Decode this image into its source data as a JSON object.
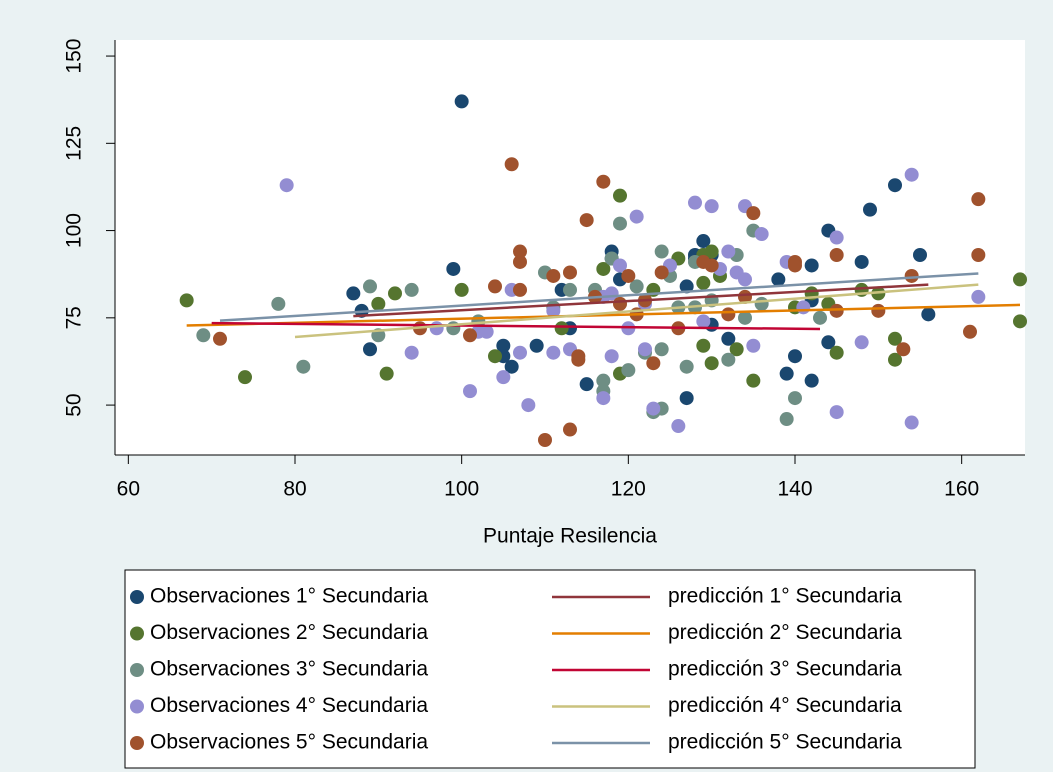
{
  "chart_data": {
    "type": "scatter",
    "xlabel": "Puntaje Resilencia",
    "xlim": [
      58.4,
      167.6
    ],
    "ylim": [
      35.7,
      154.6
    ],
    "xticks": [
      60,
      80,
      100,
      120,
      140,
      160
    ],
    "yticks": [
      50,
      75,
      100,
      125,
      150
    ],
    "grid": false,
    "legend": "bottom",
    "series": [
      {
        "name": "Observaciones 1° Secundaria",
        "type": "scatter",
        "color": "#1a476f",
        "x": [
          100,
          87,
          88,
          89,
          99,
          105,
          105,
          106,
          109,
          112,
          113,
          115,
          118,
          118,
          119,
          128,
          128,
          129,
          129,
          127,
          127,
          130,
          132,
          138,
          139,
          140,
          142,
          142,
          142,
          144,
          144,
          148,
          149,
          152,
          155,
          156,
          130
        ],
        "values": [
          137,
          82,
          77,
          66,
          89,
          67,
          64,
          61,
          67,
          83,
          72,
          56,
          94,
          92,
          86,
          93,
          92,
          97,
          93,
          84,
          52,
          73,
          69,
          86,
          59,
          64,
          90,
          57,
          80,
          100,
          68,
          91,
          106,
          113,
          93,
          76,
          93
        ]
      },
      {
        "name": "Observaciones 2° Secundaria",
        "type": "scatter",
        "color": "#55752f",
        "x": [
          67,
          74,
          90,
          91,
          92,
          100,
          104,
          112,
          117,
          119,
          119,
          123,
          126,
          129,
          129,
          130,
          130,
          131,
          133,
          135,
          140,
          142,
          144,
          145,
          148,
          150,
          152,
          152,
          167,
          167,
          129
        ],
        "values": [
          80,
          58,
          79,
          59,
          82,
          83,
          64,
          72,
          89,
          110,
          59,
          83,
          92,
          85,
          67,
          94,
          62,
          87,
          66,
          57,
          78,
          82,
          79,
          65,
          83,
          82,
          69,
          63,
          86,
          74,
          93
        ]
      },
      {
        "name": "Observaciones 3° Secundaria",
        "type": "scatter",
        "color": "#6e8e84",
        "x": [
          69,
          78,
          81,
          89,
          90,
          94,
          99,
          102,
          110,
          111,
          113,
          116,
          117,
          117,
          118,
          119,
          120,
          121,
          122,
          123,
          124,
          124,
          124,
          125,
          126,
          127,
          128,
          130,
          132,
          133,
          134,
          135,
          136,
          139,
          140,
          143,
          128
        ],
        "values": [
          70,
          79,
          61,
          84,
          70,
          83,
          72,
          74,
          88,
          78,
          83,
          83,
          57,
          54,
          92,
          102,
          60,
          84,
          65,
          48,
          94,
          66,
          49,
          87,
          78,
          61,
          78,
          80,
          63,
          93,
          75,
          100,
          79,
          46,
          52,
          75,
          91
        ]
      },
      {
        "name": "Observaciones 4° Secundaria",
        "type": "scatter",
        "color": "#938dd2",
        "x": [
          79,
          94,
          97,
          101,
          102,
          103,
          105,
          106,
          107,
          108,
          111,
          111,
          113,
          117,
          117,
          118,
          118,
          119,
          120,
          121,
          122,
          122,
          123,
          125,
          126,
          128,
          130,
          131,
          132,
          133,
          134,
          134,
          135,
          136,
          139,
          141,
          145,
          145,
          148,
          154,
          154,
          162,
          129
        ],
        "values": [
          113,
          65,
          72,
          54,
          71,
          71,
          58,
          83,
          65,
          50,
          65,
          77,
          66,
          52,
          81,
          64,
          82,
          90,
          72,
          104,
          79,
          66,
          49,
          90,
          44,
          108,
          107,
          89,
          94,
          88,
          86,
          107,
          67,
          99,
          91,
          78,
          98,
          48,
          68,
          116,
          45,
          81,
          74
        ]
      },
      {
        "name": "Observaciones 5° Secundaria",
        "type": "scatter",
        "color": "#a0522d",
        "x": [
          71,
          95,
          101,
          104,
          106,
          107,
          107,
          107,
          110,
          111,
          113,
          113,
          114,
          114,
          115,
          116,
          117,
          119,
          120,
          121,
          122,
          123,
          124,
          126,
          129,
          130,
          132,
          134,
          135,
          140,
          140,
          145,
          145,
          150,
          153,
          154,
          161,
          162,
          162
        ],
        "values": [
          69,
          72,
          70,
          84,
          119,
          94,
          91,
          83,
          40,
          87,
          88,
          43,
          64,
          63,
          103,
          81,
          114,
          79,
          87,
          76,
          80,
          62,
          88,
          72,
          91,
          90,
          76,
          81,
          105,
          91,
          90,
          93,
          77,
          77,
          66,
          87,
          71,
          109,
          93
        ]
      },
      {
        "name": "predicción 1° Secundaria",
        "type": "line",
        "color": "#90353b",
        "x": [
          87,
          156
        ],
        "values": [
          75.5,
          84.5
        ]
      },
      {
        "name": "predicción 2° Secundaria",
        "type": "line",
        "color": "#e37e00",
        "x": [
          67,
          167
        ],
        "values": [
          72.8,
          78.7
        ]
      },
      {
        "name": "predicción 3° Secundaria",
        "type": "line",
        "color": "#c10534",
        "x": [
          70,
          143
        ],
        "values": [
          73.5,
          71.8
        ]
      },
      {
        "name": "predicción 4° Secundaria",
        "type": "line",
        "color": "#cac27e",
        "x": [
          80,
          162
        ],
        "values": [
          69.5,
          84.5
        ]
      },
      {
        "name": "predicción 5° Secundaria",
        "type": "line",
        "color": "#7b92a8",
        "x": [
          71,
          162
        ],
        "values": [
          74.2,
          87.7
        ]
      }
    ]
  }
}
